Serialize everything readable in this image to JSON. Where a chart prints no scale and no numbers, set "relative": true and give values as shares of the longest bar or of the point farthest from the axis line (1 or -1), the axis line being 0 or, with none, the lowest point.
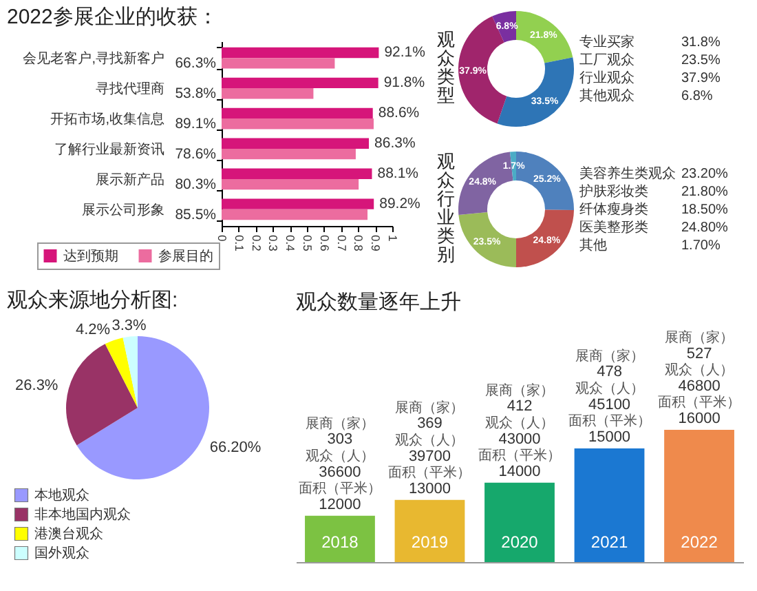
{
  "chart_data": [
    {
      "type": "bar",
      "orientation": "horizontal",
      "title": "2022参展企业的收获：",
      "categories": [
        "会见老客户,寻找新客户",
        "寻找代理商",
        "开拓市场,收集信息",
        "了解行业最新资讯",
        "展示新产品",
        "展示公司形象"
      ],
      "series": [
        {
          "name": "达到预期",
          "color": "#d6157a",
          "values": [
            0.921,
            0.918,
            0.886,
            0.863,
            0.881,
            0.892
          ],
          "value_labels": [
            "92.1%",
            "91.8%",
            "88.6%",
            "86.3%",
            "88.1%",
            "89.2%"
          ]
        },
        {
          "name": "参展目的",
          "color": "#ec6c9f",
          "values": [
            0.663,
            0.538,
            0.891,
            0.786,
            0.803,
            0.855
          ],
          "value_labels": [
            "66.3%",
            "53.8%",
            "89.1%",
            "78.6%",
            "80.3%",
            "85.5%"
          ]
        }
      ],
      "xlim": [
        0,
        1
      ],
      "xticks": [
        0,
        0.1,
        0.2,
        0.3,
        0.4,
        0.5,
        0.6,
        0.7,
        0.8,
        0.9,
        1
      ],
      "legend": "bottom",
      "grid": false
    },
    {
      "type": "donut",
      "title": "观众类型",
      "categories": [
        null,
        null,
        null,
        null
      ],
      "values": [
        21.8,
        33.5,
        37.9,
        6.8
      ],
      "colors": [
        "#92d050",
        "#2e75b6",
        "#a0256c",
        "#7a2fa0"
      ],
      "value_labels": [
        "21.8%",
        "33.5%",
        "37.9%",
        "6.8%"
      ],
      "annotations": [
        "专业买家",
        "31.8%",
        "工厂观众",
        "23.5%",
        "行业观众",
        "37.9%",
        "其他观众",
        "6.8%"
      ]
    },
    {
      "type": "donut",
      "title": "观众行业类别",
      "categories": [
        null,
        null,
        null,
        null,
        null
      ],
      "values": [
        25.2,
        24.8,
        23.5,
        24.8,
        1.7
      ],
      "colors": [
        "#4f81bd",
        "#c0504d",
        "#9bbb59",
        "#8064a2",
        "#4bacc6"
      ],
      "value_labels": [
        "25.2%",
        "24.8%",
        "23.5%",
        "24.8%",
        "1.7%"
      ],
      "annotations": [
        "美容养生类观众",
        "23.20%",
        "护肤彩妆类",
        "21.80%",
        "纤体瘦身类",
        "18.50%",
        "医美整形类",
        "24.80%",
        "其他",
        "1.70%"
      ]
    },
    {
      "type": "pie",
      "title": "观众来源地分析图:",
      "categories": [
        "本地观众",
        "非本地国内观众",
        "港澳台观众",
        "国外观众"
      ],
      "values": [
        66.2,
        26.3,
        4.2,
        3.3
      ],
      "colors": [
        "#9999ff",
        "#993366",
        "#ffff00",
        "#ccffff"
      ],
      "value_labels": [
        "66.20%",
        "26.3%",
        "4.2%",
        "3.3%"
      ],
      "legend": "bottom left"
    },
    {
      "type": "bar",
      "title": "观众数量逐年上升",
      "categories": [
        "2018",
        "2019",
        "2020",
        "2021",
        "2022"
      ],
      "relative": true,
      "values": [
        0.35,
        0.47,
        0.6,
        0.86,
        1
      ],
      "colors": [
        "#7cc242",
        "#e8b830",
        "#16a86c",
        "#1b78d2",
        "#ef8a4c"
      ],
      "annotations": [
        "展商（家）",
        "303",
        "观众（人）",
        "36600",
        "面积（平米）",
        "12000",
        "展商（家）",
        "369",
        "观众（人）",
        "39700",
        "面积（平米）",
        "13000",
        "展商（家）",
        "412",
        "观众（人）",
        "43000",
        "面积（平米）",
        "14000",
        "展商（家）",
        "478",
        "观众（人）",
        "45100",
        "面积（平米）",
        "15000",
        "展商（家）",
        "527",
        "观众（人）",
        "46800",
        "面积（平米）",
        "16000"
      ]
    }
  ]
}
